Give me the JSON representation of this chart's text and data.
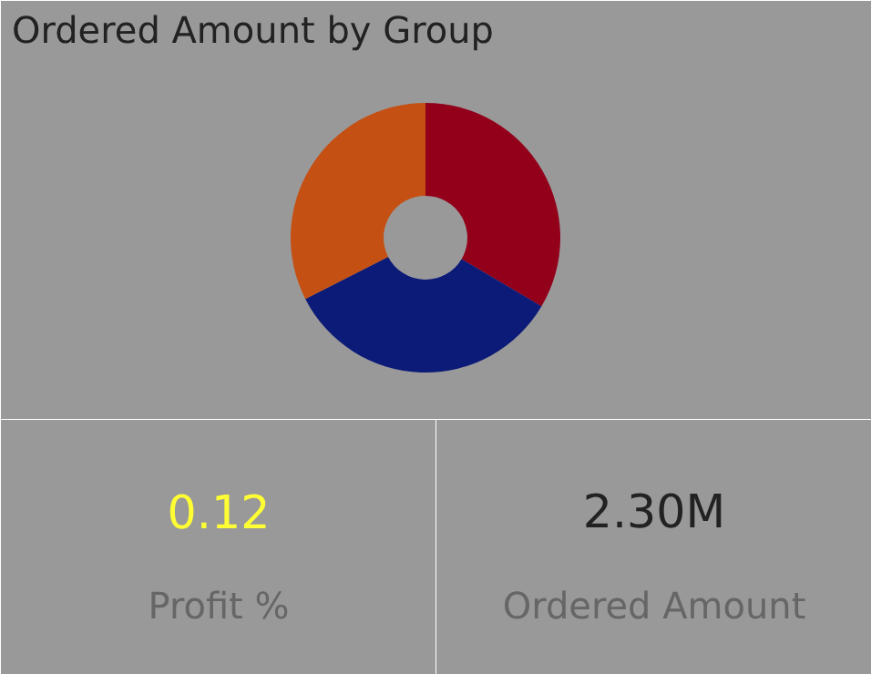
{
  "chart_data": [
    {
      "type": "donut",
      "title": "Ordered Amount by Group",
      "categories": [
        null,
        null,
        null
      ],
      "values": [
        33.5,
        34,
        32.5
      ],
      "colors": [
        "#93001a",
        "#0c1a78",
        "#c55014"
      ]
    },
    {
      "type": "other",
      "annotations": [
        "0.12",
        "Profit %"
      ]
    },
    {
      "type": "other",
      "annotations": [
        "2.30M",
        "Ordered Amount"
      ]
    }
  ]
}
